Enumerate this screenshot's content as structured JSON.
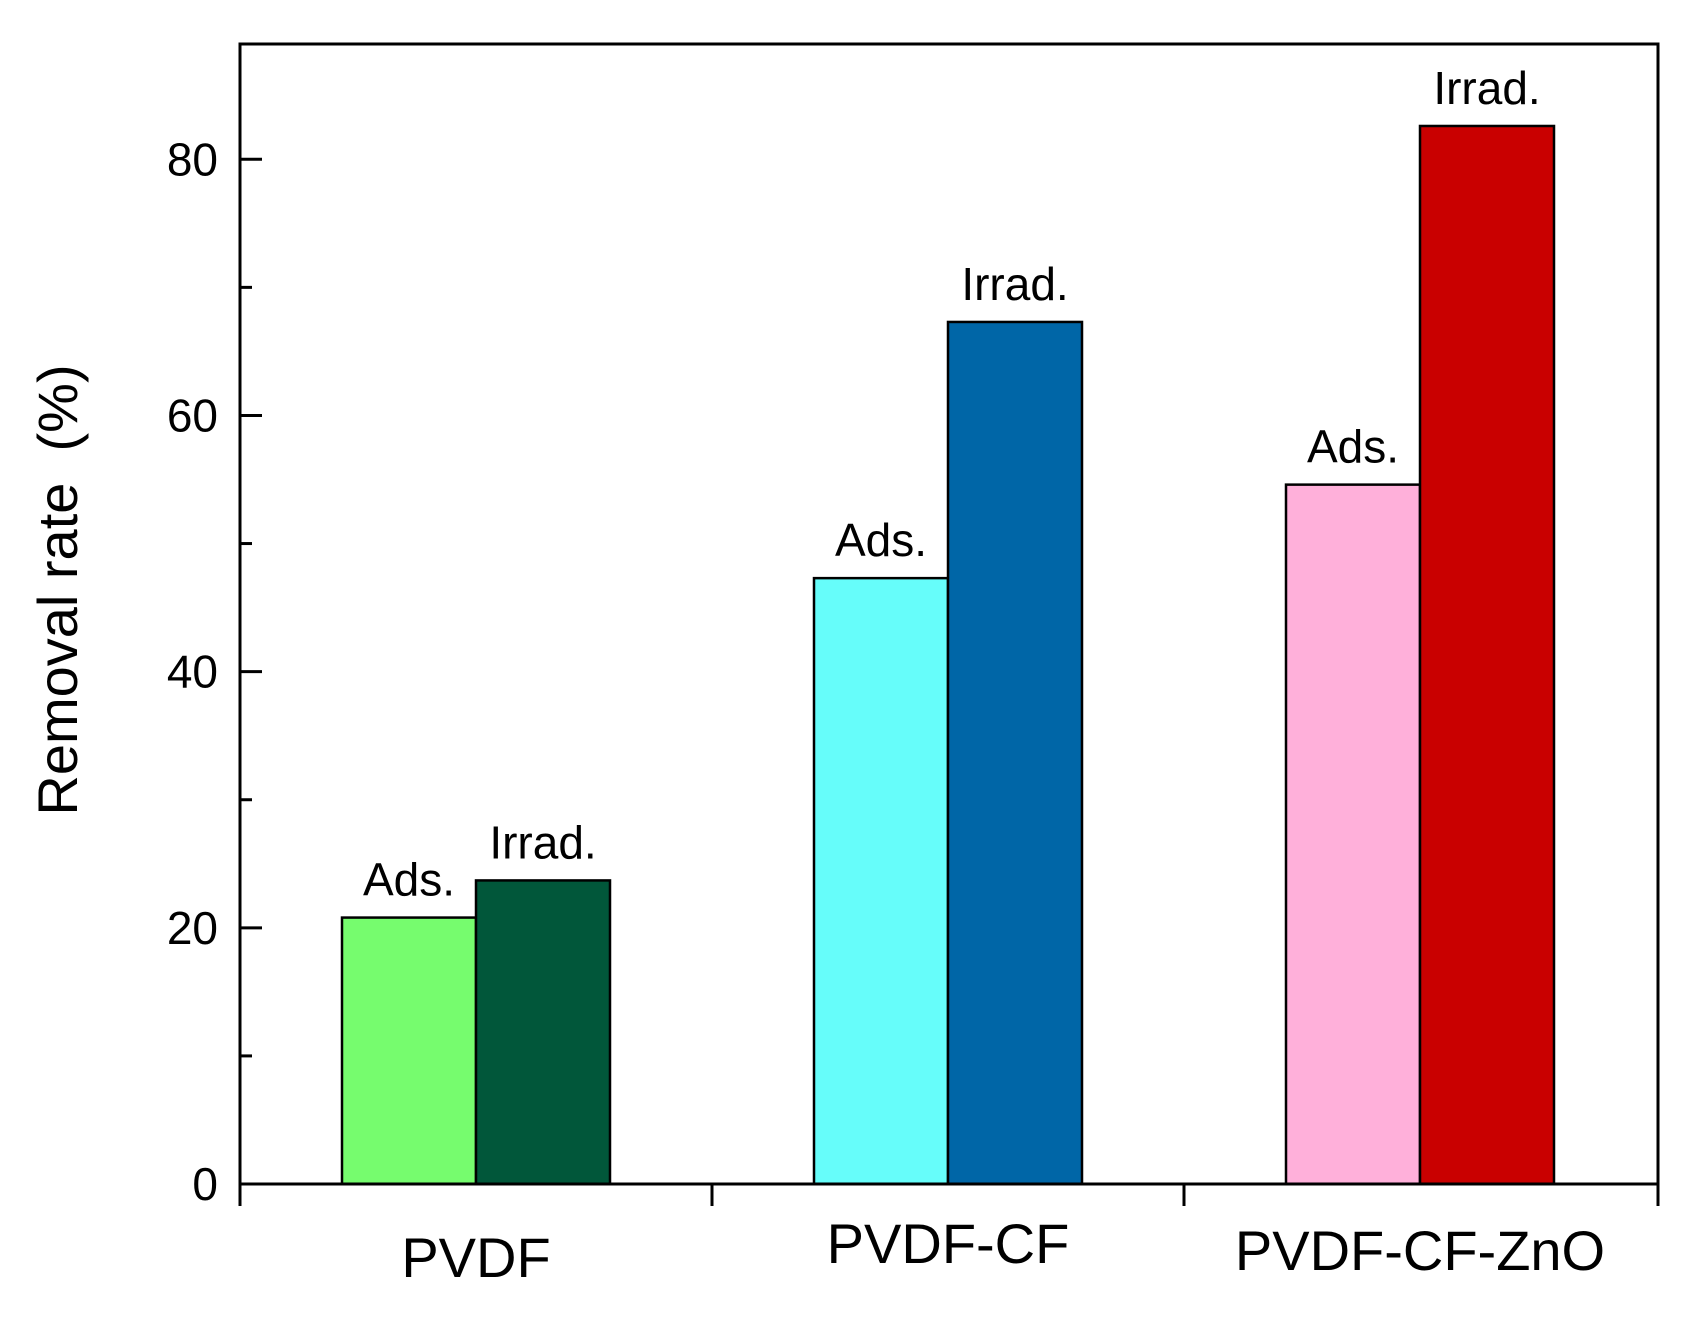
{
  "chart_data": {
    "type": "bar",
    "title": "",
    "xlabel": "",
    "ylabel": "Removal rate  (%)",
    "ylim": [
      0,
      89
    ],
    "yticks": [
      0,
      20,
      40,
      60,
      80
    ],
    "yticks_minor": [
      10,
      30,
      50,
      70
    ],
    "categories": [
      "PVDF",
      "PVDF-CF",
      "PVDF-CF-ZnO"
    ],
    "groups": [
      {
        "category": "PVDF",
        "bars": [
          {
            "label": "Ads.",
            "value": 20.8,
            "color": "#76fc6e"
          },
          {
            "label": "Irrad.",
            "value": 23.7,
            "color": "#01573a"
          }
        ]
      },
      {
        "category": "PVDF-CF",
        "bars": [
          {
            "label": "Ads.",
            "value": 47.3,
            "color": "#66fdfa"
          },
          {
            "label": "Irrad.",
            "value": 67.3,
            "color": "#0066a7"
          }
        ]
      },
      {
        "category": "PVDF-CF-ZnO",
        "bars": [
          {
            "label": "Ads.",
            "value": 54.6,
            "color": "#ffb0da"
          },
          {
            "label": "Irrad.",
            "value": 82.6,
            "color": "#c90000"
          }
        ]
      }
    ]
  }
}
